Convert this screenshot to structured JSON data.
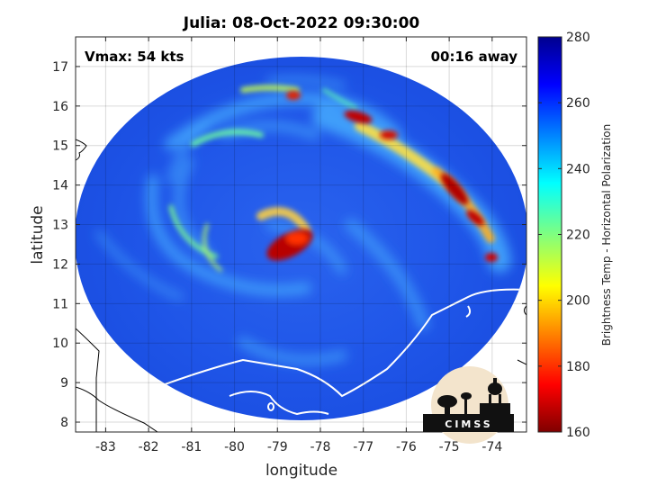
{
  "chart_data": {
    "type": "heatmap",
    "title": "Julia: 08-Oct-2022 09:30:00",
    "xlabel": "longitude",
    "ylabel": "latitude",
    "xlim": [
      -83.7,
      -73.2
    ],
    "ylim": [
      7.75,
      17.75
    ],
    "xticks": [
      -83,
      -82,
      -81,
      -80,
      -79,
      -78,
      -77,
      -76,
      -75,
      -74
    ],
    "yticks": [
      8,
      9,
      10,
      11,
      12,
      13,
      14,
      15,
      16,
      17
    ],
    "grid": true,
    "annotations": {
      "vmax": "Vmax: 54 kts",
      "away": "00:16 away"
    },
    "colorbar": {
      "label": "Brightness Temp - Horizontal Polarization",
      "range": [
        160,
        280
      ],
      "ticks": [
        160,
        180,
        200,
        220,
        240,
        260,
        280
      ],
      "colormap": "jet"
    },
    "logo": "CIMSS",
    "colors": {
      "background_field": "#1f52e6",
      "band": "#49b4ff",
      "hot": "#b80000"
    }
  }
}
